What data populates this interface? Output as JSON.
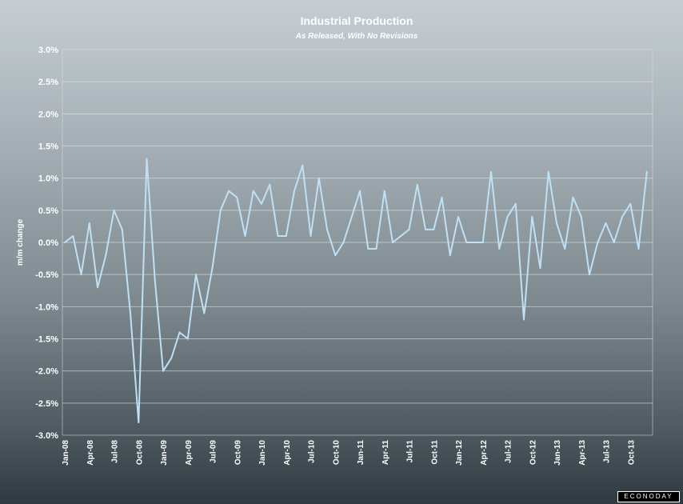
{
  "chart_data": {
    "type": "line",
    "title": "Industrial Production",
    "subtitle": "As Released, With No Revisions",
    "ylabel": "m/m change",
    "xlabel": "",
    "ylim": [
      -3.0,
      3.0
    ],
    "yticks": [
      "3.0%",
      "2.5%",
      "2.0%",
      "1.5%",
      "1.0%",
      "0.5%",
      "0.0%",
      "-0.5%",
      "-1.0%",
      "-1.5%",
      "-2.0%",
      "-2.5%",
      "-3.0%"
    ],
    "ytick_values": [
      3.0,
      2.5,
      2.0,
      1.5,
      1.0,
      0.5,
      0.0,
      -0.5,
      -1.0,
      -1.5,
      -2.0,
      -2.5,
      -3.0
    ],
    "xticks": [
      "Jan-08",
      "Apr-08",
      "Jul-08",
      "Oct-08",
      "Jan-09",
      "Apr-09",
      "Jul-09",
      "Oct-09",
      "Jan-10",
      "Apr-10",
      "Jul-10",
      "Oct-10",
      "Jan-11",
      "Apr-11",
      "Jul-11",
      "Oct-11",
      "Jan-12",
      "Apr-12",
      "Jul-12",
      "Oct-12",
      "Jan-13",
      "Apr-13",
      "Jul-13",
      "Oct-13"
    ],
    "grid": true,
    "line_color": "#bfe0f5",
    "series": [
      {
        "x": [
          "Jan-08",
          "Feb-08",
          "Mar-08",
          "Apr-08",
          "May-08",
          "Jun-08",
          "Jul-08",
          "Aug-08",
          "Sep-08",
          "Oct-08",
          "Nov-08",
          "Dec-08",
          "Jan-09",
          "Feb-09",
          "Mar-09",
          "Apr-09",
          "May-09",
          "Jun-09",
          "Jul-09",
          "Aug-09",
          "Sep-09",
          "Oct-09",
          "Nov-09",
          "Dec-09",
          "Jan-10",
          "Feb-10",
          "Mar-10",
          "Apr-10",
          "May-10",
          "Jun-10",
          "Jul-10",
          "Aug-10",
          "Sep-10",
          "Oct-10",
          "Nov-10",
          "Dec-10",
          "Jan-11",
          "Feb-11",
          "Mar-11",
          "Apr-11",
          "May-11",
          "Jun-11",
          "Jul-11",
          "Aug-11",
          "Sep-11",
          "Oct-11",
          "Nov-11",
          "Dec-11",
          "Jan-12",
          "Feb-12",
          "Mar-12",
          "Apr-12",
          "May-12",
          "Jun-12",
          "Jul-12",
          "Aug-12",
          "Sep-12",
          "Oct-12",
          "Nov-12",
          "Dec-12",
          "Jan-13",
          "Feb-13",
          "Mar-13",
          "Apr-13",
          "May-13",
          "Jun-13",
          "Jul-13",
          "Aug-13",
          "Sep-13",
          "Oct-13",
          "Nov-13",
          "Dec-13"
        ],
        "values": [
          0.0,
          0.1,
          -0.5,
          0.3,
          -0.7,
          -0.2,
          0.5,
          0.2,
          -1.1,
          -2.8,
          1.3,
          -0.6,
          -2.0,
          -1.8,
          -1.4,
          -1.5,
          -0.5,
          -1.1,
          -0.4,
          0.5,
          0.8,
          0.7,
          0.1,
          0.8,
          0.6,
          0.9,
          0.1,
          0.1,
          0.8,
          1.2,
          0.1,
          1.0,
          0.2,
          -0.2,
          0.0,
          0.4,
          0.8,
          -0.1,
          -0.1,
          0.8,
          0.0,
          0.1,
          0.2,
          0.9,
          0.2,
          0.2,
          0.7,
          -0.2,
          0.4,
          0.0,
          0.0,
          0.0,
          1.1,
          -0.1,
          0.4,
          0.6,
          -1.2,
          0.4,
          -0.4,
          1.1,
          0.3,
          -0.1,
          0.7,
          0.4,
          -0.5,
          0.0,
          0.3,
          0.0,
          0.4,
          0.6,
          -0.1,
          1.1
        ]
      }
    ]
  },
  "branding": {
    "logo_text": "ECONODAY"
  }
}
